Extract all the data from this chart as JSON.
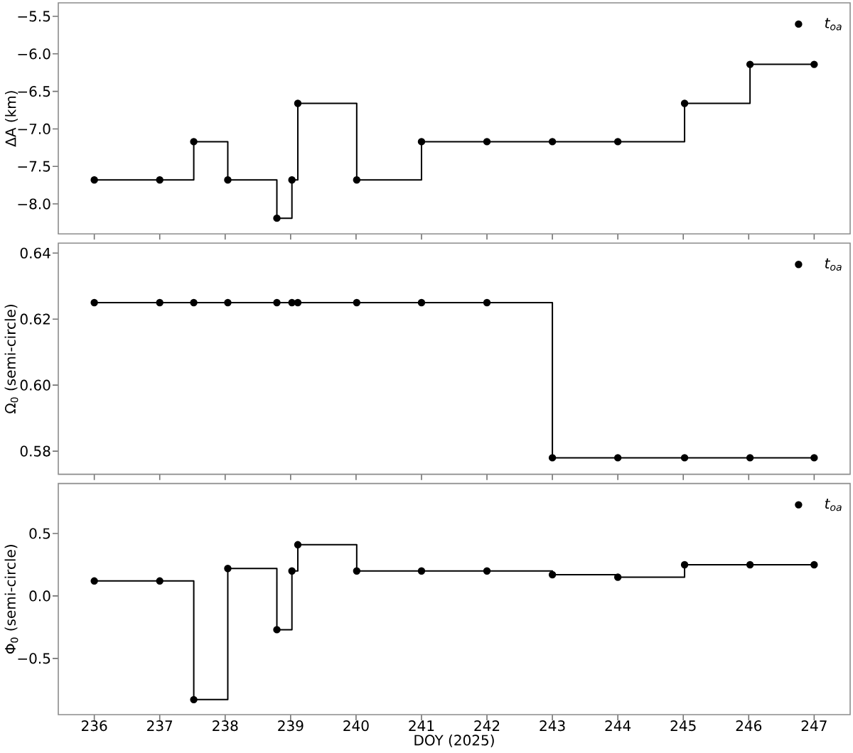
{
  "chart_data": [
    {
      "type": "step",
      "x": [
        236,
        237,
        237.52,
        238.04,
        238.79,
        239.02,
        239.11,
        240.01,
        241,
        242,
        243,
        244,
        245.02,
        246.02,
        247
      ],
      "ylabel": "ΔA (km)",
      "xlim": [
        235.45,
        247.55
      ],
      "xticks": [
        236,
        237,
        238,
        239,
        240,
        241,
        242,
        243,
        244,
        245,
        246,
        247
      ],
      "ylim": [
        -8.4,
        -5.32
      ],
      "yticks": [
        {
          "value": -8,
          "label": "−8.0"
        },
        {
          "value": -7.5,
          "label": "−7.5"
        },
        {
          "value": -7,
          "label": "−7.0"
        },
        {
          "value": -6.5,
          "label": "−6.5"
        },
        {
          "value": -6,
          "label": "−6.0"
        },
        {
          "value": -5.5,
          "label": "−5.5"
        }
      ],
      "tick_labels": "y",
      "legend": "top right",
      "series": [
        {
          "color": "#000000",
          "values": [
            -7.68,
            -7.68,
            -7.17,
            -7.68,
            -8.19,
            -7.68,
            -6.66,
            -7.68,
            -7.17,
            -7.17,
            -7.17,
            -7.17,
            -6.66,
            -6.14,
            -6.14
          ]
        },
        {
          "type": "scatter",
          "name": "t$_{oa}$",
          "color": "#000000",
          "marker": "circle",
          "values": [
            -7.68,
            -7.68,
            -7.17,
            -7.68,
            -8.19,
            -7.68,
            -6.66,
            -7.68,
            -7.17,
            -7.17,
            -7.17,
            -7.17,
            -6.66,
            -6.14,
            -6.14
          ]
        }
      ]
    },
    {
      "type": "step",
      "x": [
        236,
        237,
        237.52,
        238.04,
        238.79,
        239.02,
        239.11,
        240.01,
        241,
        242,
        243,
        244,
        245.02,
        246.02,
        247
      ],
      "ylabel": "Ω$_{0}$ (semi-circle)",
      "xlim": [
        235.45,
        247.55
      ],
      "xticks": [
        236,
        237,
        238,
        239,
        240,
        241,
        242,
        243,
        244,
        245,
        246,
        247
      ],
      "ylim": [
        0.573,
        0.643
      ],
      "yticks": [
        {
          "value": 0.58,
          "label": "0.58"
        },
        {
          "value": 0.6,
          "label": "0.60"
        },
        {
          "value": 0.62,
          "label": "0.62"
        },
        {
          "value": 0.64,
          "label": "0.64"
        }
      ],
      "tick_labels": "y",
      "legend": "top right",
      "series": [
        {
          "color": "#000000",
          "values": [
            0.625,
            0.625,
            0.625,
            0.625,
            0.625,
            0.625,
            0.625,
            0.625,
            0.625,
            0.625,
            0.578,
            0.578,
            0.578,
            0.578,
            0.578
          ]
        },
        {
          "type": "scatter",
          "name": "t$_{oa}$",
          "color": "#000000",
          "marker": "circle",
          "values": [
            0.625,
            0.625,
            0.625,
            0.625,
            0.625,
            0.625,
            0.625,
            0.625,
            0.625,
            0.625,
            0.578,
            0.578,
            0.578,
            0.578,
            0.578
          ]
        }
      ]
    },
    {
      "type": "step",
      "x": [
        236,
        237,
        237.52,
        238.04,
        238.79,
        239.02,
        239.11,
        240.01,
        241,
        242,
        243,
        244,
        245.02,
        246.02,
        247
      ],
      "xlabel": "DOY (2025)",
      "ylabel": "Φ$_{0}$ (semi-circle)",
      "xlim": [
        235.45,
        247.55
      ],
      "xticks": [
        236,
        237,
        238,
        239,
        240,
        241,
        242,
        243,
        244,
        245,
        246,
        247
      ],
      "ylim": [
        -0.95,
        0.9
      ],
      "yticks": [
        {
          "value": -0.5,
          "label": "−0.5"
        },
        {
          "value": 0,
          "label": "0.0"
        },
        {
          "value": 0.5,
          "label": "0.5"
        }
      ],
      "legend": "top right",
      "series": [
        {
          "color": "#000000",
          "values": [
            0.12,
            0.12,
            -0.83,
            0.22,
            -0.27,
            0.2,
            0.41,
            0.2,
            0.2,
            0.2,
            0.17,
            0.15,
            0.25,
            0.25,
            0.25
          ]
        },
        {
          "type": "scatter",
          "name": "t$_{oa}$",
          "color": "#000000",
          "marker": "circle",
          "values": [
            0.12,
            0.12,
            -0.83,
            0.22,
            -0.27,
            0.2,
            0.41,
            0.2,
            0.2,
            0.2,
            0.17,
            0.15,
            0.25,
            0.25,
            0.25
          ]
        }
      ]
    }
  ]
}
